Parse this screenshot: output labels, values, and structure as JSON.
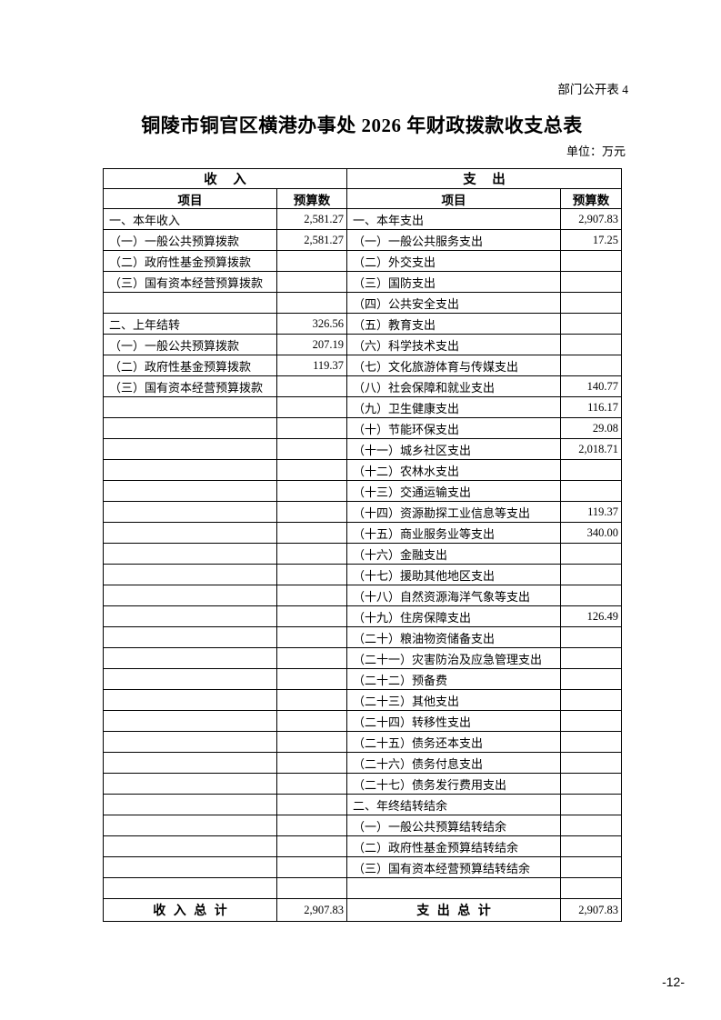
{
  "page": {
    "doc_label": "部门公开表 4",
    "title": "铜陵市铜官区横港办事处 2026 年财政拨款收支总表",
    "unit_note": "单位：万元",
    "page_number": "-12-"
  },
  "table": {
    "income_section_header": "收 入",
    "expense_section_header": "支 出",
    "item_col_header": "项目",
    "budget_col_header": "预算数",
    "rows": [
      {
        "income_item": "一、本年收入",
        "income_budget": "2,581.27",
        "expense_item": "一、本年支出",
        "expense_budget": "2,907.83"
      },
      {
        "income_item": "（一）一般公共预算拨款",
        "income_budget": "2,581.27",
        "expense_item": "（一）一般公共服务支出",
        "expense_budget": "17.25"
      },
      {
        "income_item": "（二）政府性基金预算拨款",
        "income_budget": "",
        "expense_item": "（二）外交支出",
        "expense_budget": ""
      },
      {
        "income_item": "（三）国有资本经营预算拨款",
        "income_budget": "",
        "expense_item": "（三）国防支出",
        "expense_budget": ""
      },
      {
        "income_item": "",
        "income_budget": "",
        "expense_item": "（四）公共安全支出",
        "expense_budget": ""
      },
      {
        "income_item": "二、上年结转",
        "income_budget": "326.56",
        "expense_item": "（五）教育支出",
        "expense_budget": ""
      },
      {
        "income_item": "（一）一般公共预算拨款",
        "income_budget": "207.19",
        "expense_item": "（六）科学技术支出",
        "expense_budget": ""
      },
      {
        "income_item": "（二）政府性基金预算拨款",
        "income_budget": "119.37",
        "expense_item": "（七）文化旅游体育与传媒支出",
        "expense_budget": ""
      },
      {
        "income_item": "（三）国有资本经营预算拨款",
        "income_budget": "",
        "expense_item": "（八）社会保障和就业支出",
        "expense_budget": "140.77"
      },
      {
        "income_item": "",
        "income_budget": "",
        "expense_item": "（九）卫生健康支出",
        "expense_budget": "116.17"
      },
      {
        "income_item": "",
        "income_budget": "",
        "expense_item": "（十）节能环保支出",
        "expense_budget": "29.08"
      },
      {
        "income_item": "",
        "income_budget": "",
        "expense_item": "（十一）城乡社区支出",
        "expense_budget": "2,018.71"
      },
      {
        "income_item": "",
        "income_budget": "",
        "expense_item": "（十二）农林水支出",
        "expense_budget": ""
      },
      {
        "income_item": "",
        "income_budget": "",
        "expense_item": "（十三）交通运输支出",
        "expense_budget": ""
      },
      {
        "income_item": "",
        "income_budget": "",
        "expense_item": "（十四）资源勘探工业信息等支出",
        "expense_budget": "119.37"
      },
      {
        "income_item": "",
        "income_budget": "",
        "expense_item": "（十五）商业服务业等支出",
        "expense_budget": "340.00"
      },
      {
        "income_item": "",
        "income_budget": "",
        "expense_item": "（十六）金融支出",
        "expense_budget": ""
      },
      {
        "income_item": "",
        "income_budget": "",
        "expense_item": "（十七）援助其他地区支出",
        "expense_budget": ""
      },
      {
        "income_item": "",
        "income_budget": "",
        "expense_item": "（十八）自然资源海洋气象等支出",
        "expense_budget": ""
      },
      {
        "income_item": "",
        "income_budget": "",
        "expense_item": "（十九）住房保障支出",
        "expense_budget": "126.49"
      },
      {
        "income_item": "",
        "income_budget": "",
        "expense_item": "（二十）粮油物资储备支出",
        "expense_budget": ""
      },
      {
        "income_item": "",
        "income_budget": "",
        "expense_item": "（二十一）灾害防治及应急管理支出",
        "expense_budget": ""
      },
      {
        "income_item": "",
        "income_budget": "",
        "expense_item": "（二十二）预备费",
        "expense_budget": ""
      },
      {
        "income_item": "",
        "income_budget": "",
        "expense_item": "（二十三）其他支出",
        "expense_budget": ""
      },
      {
        "income_item": "",
        "income_budget": "",
        "expense_item": "（二十四）转移性支出",
        "expense_budget": ""
      },
      {
        "income_item": "",
        "income_budget": "",
        "expense_item": "（二十五）债务还本支出",
        "expense_budget": ""
      },
      {
        "income_item": "",
        "income_budget": "",
        "expense_item": "（二十六）债务付息支出",
        "expense_budget": ""
      },
      {
        "income_item": "",
        "income_budget": "",
        "expense_item": "（二十七）债务发行费用支出",
        "expense_budget": ""
      },
      {
        "income_item": "",
        "income_budget": "",
        "expense_item": "二、年终结转结余",
        "expense_budget": ""
      },
      {
        "income_item": "",
        "income_budget": "",
        "expense_item": "（一）一般公共预算结转结余",
        "expense_budget": ""
      },
      {
        "income_item": "",
        "income_budget": "",
        "expense_item": "（二）政府性基金预算结转结余",
        "expense_budget": ""
      },
      {
        "income_item": "",
        "income_budget": "",
        "expense_item": "（三）国有资本经营预算结转结余",
        "expense_budget": ""
      },
      {
        "income_item": "",
        "income_budget": "",
        "expense_item": "",
        "expense_budget": ""
      }
    ],
    "total": {
      "income_label": "收 入 总 计",
      "income_value": "2,907.83",
      "expense_label": "支 出 总 计",
      "expense_value": "2,907.83"
    }
  }
}
